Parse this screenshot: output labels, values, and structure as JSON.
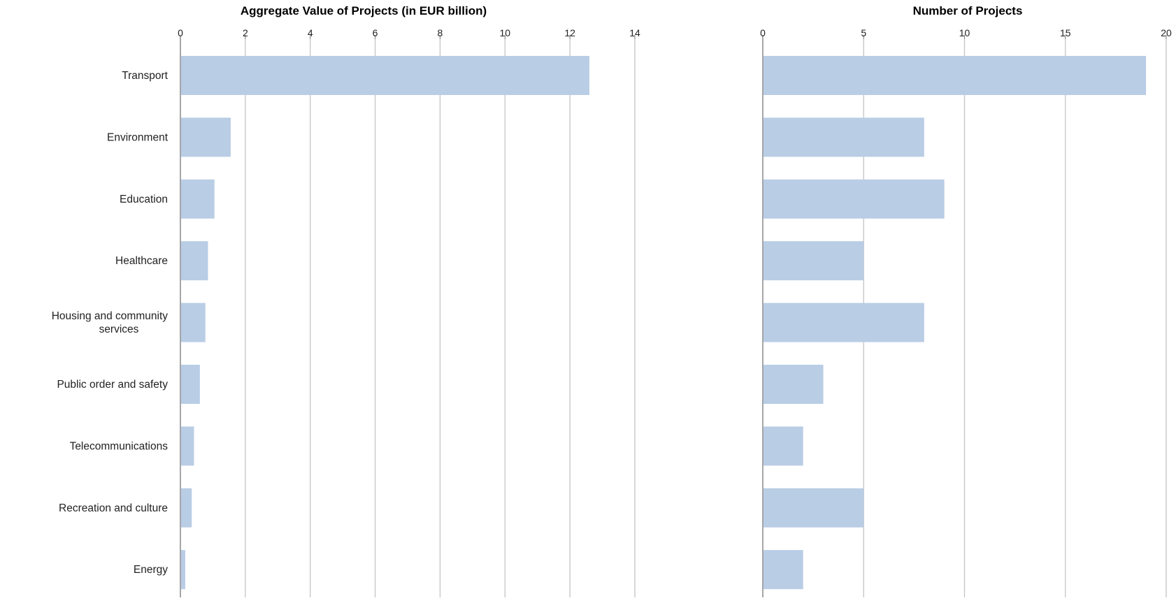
{
  "chart_data": [
    {
      "type": "bar",
      "orientation": "horizontal",
      "title": "Aggregate Value of Projects (in EUR billion)",
      "categories": [
        "Transport",
        "Environment",
        "Education",
        "Healthcare",
        [
          "Housing and community",
          "services"
        ],
        "Public order and safety",
        "Telecommunications",
        "Recreation and culture",
        "Energy"
      ],
      "values": [
        12.6,
        1.55,
        1.05,
        0.85,
        0.77,
        0.6,
        0.42,
        0.35,
        0.15
      ],
      "xlim": [
        0,
        14
      ],
      "ticks": [
        0,
        2,
        4,
        6,
        8,
        10,
        12,
        14
      ],
      "tick_labels": [
        "0",
        "2",
        "4",
        "6",
        "8",
        "10",
        "12",
        "14"
      ],
      "axis_position": "top",
      "grid": true,
      "bar_color": "#b9cde5"
    },
    {
      "type": "bar",
      "orientation": "horizontal",
      "title": "Number of Projects",
      "categories": [
        "Transport",
        "Environment",
        "Education",
        "Healthcare",
        [
          "Housing and community",
          "services"
        ],
        "Public order and safety",
        "Telecommunications",
        "Recreation and culture",
        "Energy"
      ],
      "values": [
        19,
        8,
        9,
        5,
        8,
        3,
        2,
        5,
        2
      ],
      "xlim": [
        0,
        20
      ],
      "ticks": [
        0,
        5,
        10,
        15,
        20
      ],
      "tick_labels": [
        "0",
        "5",
        "10",
        "15",
        "20"
      ],
      "axis_position": "top",
      "grid": true,
      "bar_color": "#b9cde5"
    }
  ]
}
